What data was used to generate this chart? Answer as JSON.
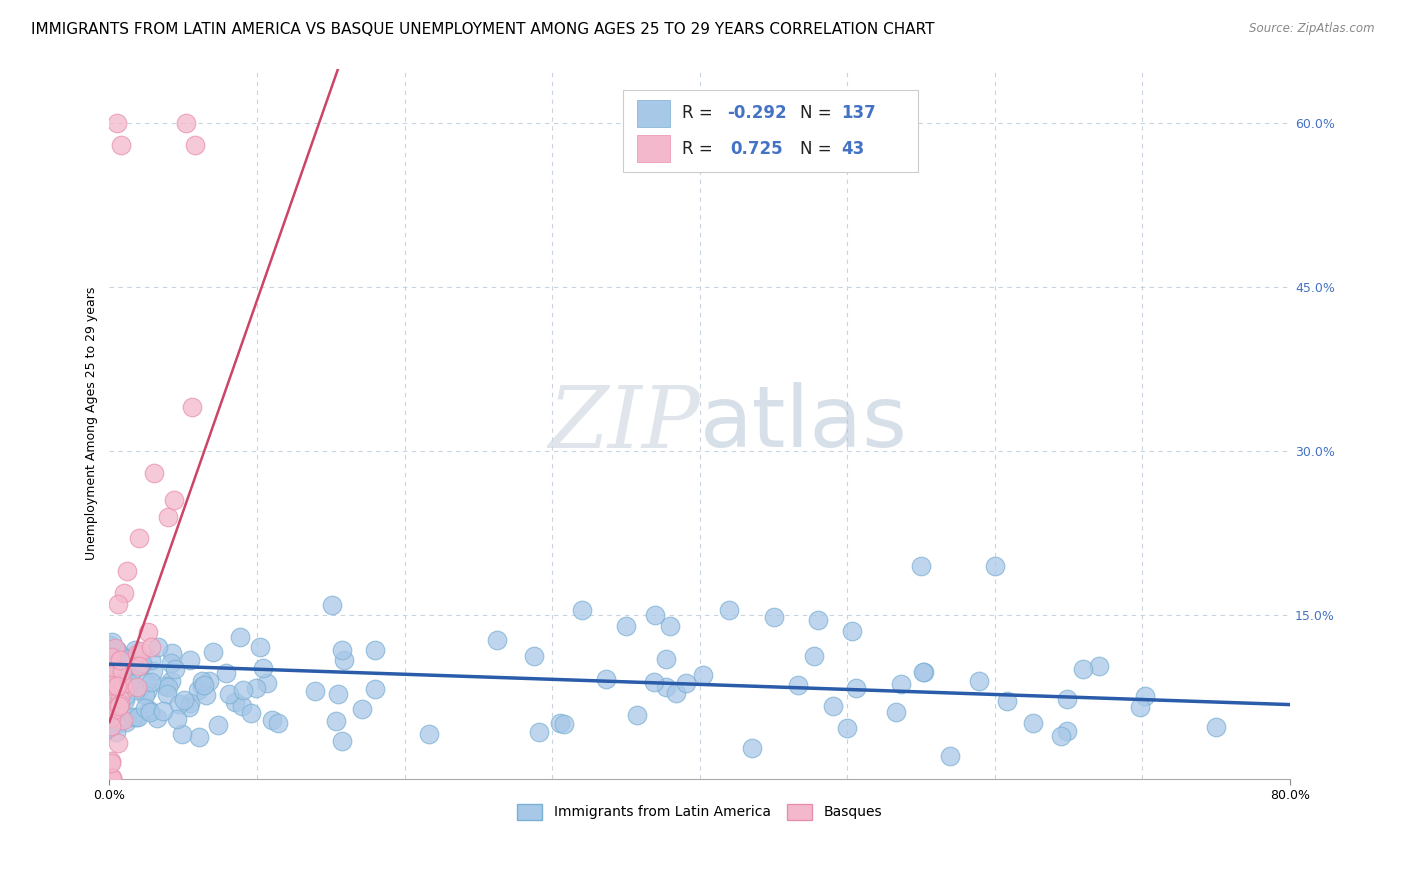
{
  "title": "IMMIGRANTS FROM LATIN AMERICA VS BASQUE UNEMPLOYMENT AMONG AGES 25 TO 29 YEARS CORRELATION CHART",
  "source": "Source: ZipAtlas.com",
  "ylabel": "Unemployment Among Ages 25 to 29 years",
  "xlim": [
    0,
    0.8
  ],
  "ylim": [
    0,
    0.65
  ],
  "yticks_right": [
    0.0,
    0.15,
    0.3,
    0.45,
    0.6
  ],
  "yticklabels_right": [
    "",
    "15.0%",
    "30.0%",
    "45.0%",
    "60.0%"
  ],
  "blue_color": "#a8c8e8",
  "blue_edge_color": "#7ab0d4",
  "pink_color": "#f4b8cc",
  "pink_edge_color": "#e890aa",
  "blue_line_color": "#2a5caa",
  "pink_line_color": "#cc4466",
  "watermark_zip_color": "#d0d8e8",
  "watermark_atlas_color": "#b8c8dc",
  "background_color": "#ffffff",
  "grid_color": "#c8d4e0",
  "title_fontsize": 11,
  "axis_label_fontsize": 9,
  "tick_fontsize": 9,
  "legend_r_blue": "-0.292",
  "legend_n_blue": "137",
  "legend_r_pink": "0.725",
  "legend_n_pink": "43",
  "blue_line_x0": 0.0,
  "blue_line_y0": 0.105,
  "blue_line_x1": 0.8,
  "blue_line_y1": 0.068,
  "pink_line_x0": 0.0,
  "pink_line_y0": 0.052,
  "pink_line_x1": 0.155,
  "pink_line_y1": 0.65
}
